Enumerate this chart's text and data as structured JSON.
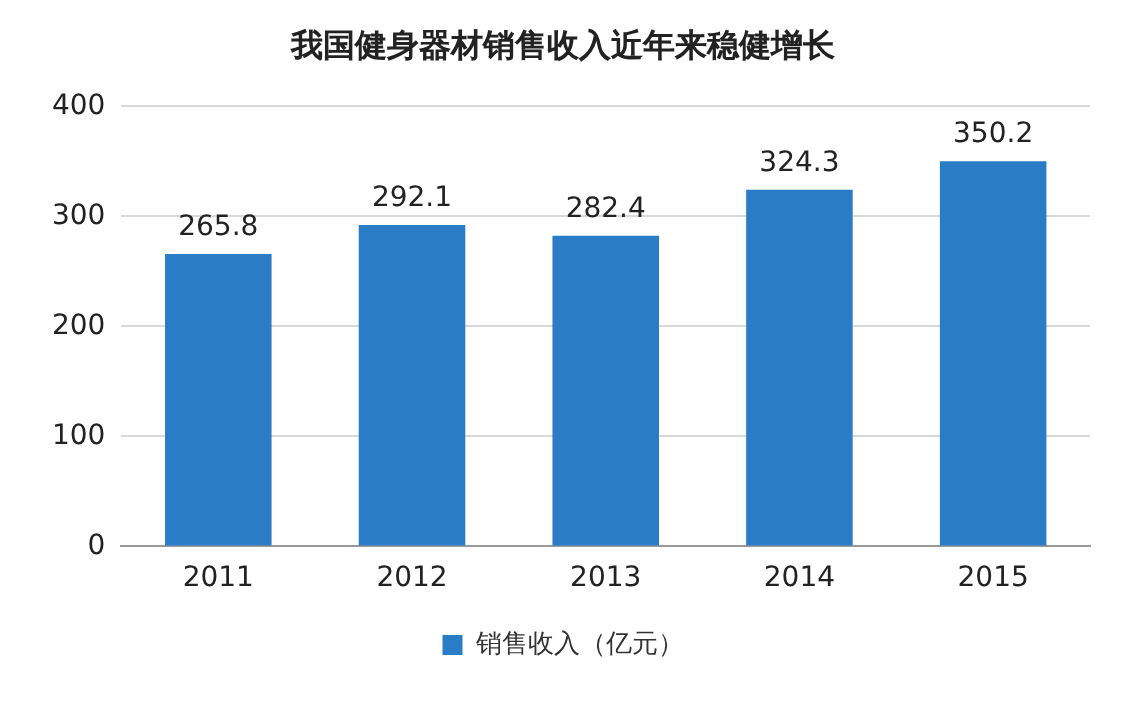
{
  "chart_data": {
    "type": "bar",
    "title": "我国健身器材销售收入近年来稳健增长",
    "categories": [
      "2011",
      "2012",
      "2013",
      "2014",
      "2015"
    ],
    "series": [
      {
        "name": "销售收入（亿元）",
        "color": "#2a7cc6",
        "values": [
          265.8,
          292.1,
          282.4,
          324.3,
          350.2
        ]
      }
    ],
    "ylim": [
      0,
      400
    ],
    "yticks": [
      0,
      100,
      200,
      300,
      400
    ],
    "grid": "y",
    "legend": "bottom",
    "data_labels": true
  }
}
